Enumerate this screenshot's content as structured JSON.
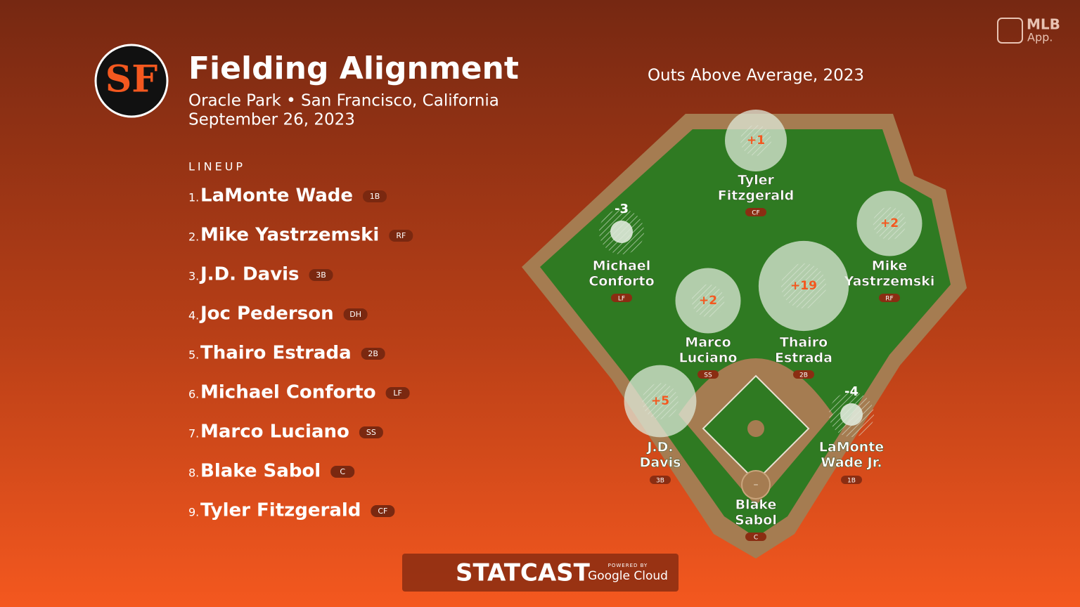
{
  "brand": {
    "mlb": "MLB",
    "app": "App."
  },
  "header": {
    "title": "Fielding Alignment",
    "venue": "Oracle Park • San Francisco, California",
    "date": "September 26, 2023"
  },
  "lineup": {
    "label": "LINEUP",
    "rows": [
      {
        "order": "1.",
        "name": "LaMonte Wade",
        "pos": "1B"
      },
      {
        "order": "2.",
        "name": "Mike Yastrzemski",
        "pos": "RF"
      },
      {
        "order": "3.",
        "name": "J.D. Davis",
        "pos": "3B"
      },
      {
        "order": "4.",
        "name": "Joc Pederson",
        "pos": "DH"
      },
      {
        "order": "5.",
        "name": "Thairo Estrada",
        "pos": "2B"
      },
      {
        "order": "6.",
        "name": "Michael Conforto",
        "pos": "LF"
      },
      {
        "order": "7.",
        "name": "Marco Luciano",
        "pos": "SS"
      },
      {
        "order": "8.",
        "name": "Blake Sabol",
        "pos": "C"
      },
      {
        "order": "9.",
        "name": "Tyler Fitzgerald",
        "pos": "CF"
      }
    ]
  },
  "field": {
    "title": "Outs Above Average, 2023",
    "players": [
      {
        "name_lines": [
          "Tyler",
          "Fitzgerald"
        ],
        "pos": "CF",
        "oaa": {
          "value": 1,
          "label": "+1"
        }
      },
      {
        "name_lines": [
          "Michael",
          "Conforto"
        ],
        "pos": "LF",
        "oaa": {
          "value": -3,
          "label": "-3"
        }
      },
      {
        "name_lines": [
          "Mike",
          "Yastrzemski"
        ],
        "pos": "RF",
        "oaa": {
          "value": 2,
          "label": "+2"
        }
      },
      {
        "name_lines": [
          "Marco",
          "Luciano"
        ],
        "pos": "SS",
        "oaa": {
          "value": 2,
          "label": "+2"
        }
      },
      {
        "name_lines": [
          "Thairo",
          "Estrada"
        ],
        "pos": "2B",
        "oaa": {
          "value": 19,
          "label": "+19"
        }
      },
      {
        "name_lines": [
          "J.D.",
          "Davis"
        ],
        "pos": "3B",
        "oaa": {
          "value": 5,
          "label": "+5"
        }
      },
      {
        "name_lines": [
          "LaMonte",
          "Wade Jr."
        ],
        "pos": "1B",
        "oaa": {
          "value": -4,
          "label": "-4"
        }
      },
      {
        "name_lines": [
          "Blake",
          "Sabol"
        ],
        "pos": "C",
        "oaa": {
          "value": null,
          "label": "–"
        }
      }
    ]
  },
  "footer": {
    "brand": "STATCAST",
    "powered": "POWERED BY",
    "partner": "Google Cloud"
  }
}
